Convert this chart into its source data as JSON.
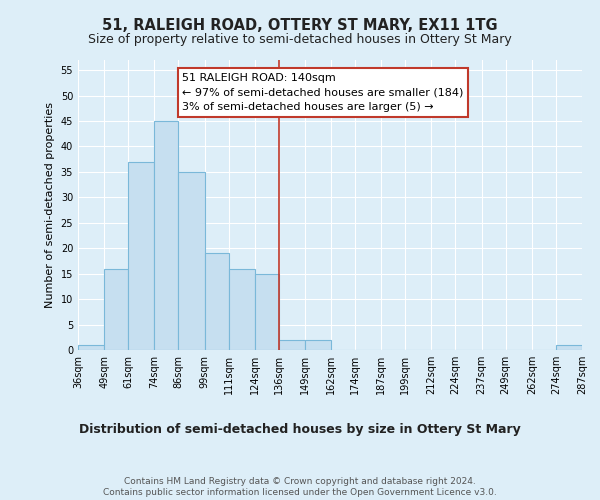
{
  "title": "51, RALEIGH ROAD, OTTERY ST MARY, EX11 1TG",
  "subtitle": "Size of property relative to semi-detached houses in Ottery St Mary",
  "xlabel": "Distribution of semi-detached houses by size in Ottery St Mary",
  "ylabel": "Number of semi-detached properties",
  "bar_edges": [
    36,
    49,
    61,
    74,
    86,
    99,
    111,
    124,
    136,
    149,
    162,
    174,
    187,
    199,
    212,
    224,
    237,
    249,
    262,
    274,
    287
  ],
  "bar_heights": [
    1,
    16,
    37,
    45,
    35,
    19,
    16,
    15,
    2,
    2,
    0,
    0,
    0,
    0,
    0,
    0,
    0,
    0,
    0,
    1
  ],
  "tick_labels": [
    "36sqm",
    "49sqm",
    "61sqm",
    "74sqm",
    "86sqm",
    "99sqm",
    "111sqm",
    "124sqm",
    "136sqm",
    "149sqm",
    "162sqm",
    "174sqm",
    "187sqm",
    "199sqm",
    "212sqm",
    "224sqm",
    "237sqm",
    "249sqm",
    "262sqm",
    "274sqm",
    "287sqm"
  ],
  "bar_color": "#c6dff0",
  "bar_edge_color": "#7ab8d9",
  "property_line_x": 136,
  "property_line_color": "#c0392b",
  "ylim": [
    0,
    57
  ],
  "yticks": [
    0,
    5,
    10,
    15,
    20,
    25,
    30,
    35,
    40,
    45,
    50,
    55
  ],
  "annotation_box_text": "51 RALEIGH ROAD: 140sqm\n← 97% of semi-detached houses are smaller (184)\n3% of semi-detached houses are larger (5) →",
  "annotation_box_color": "#ffffff",
  "annotation_box_edge_color": "#c0392b",
  "background_color": "#ddeef8",
  "grid_color": "#ffffff",
  "footer_text": "Contains HM Land Registry data © Crown copyright and database right 2024.\nContains public sector information licensed under the Open Government Licence v3.0.",
  "title_fontsize": 10.5,
  "subtitle_fontsize": 9,
  "xlabel_fontsize": 9,
  "ylabel_fontsize": 8,
  "annotation_fontsize": 8,
  "footer_fontsize": 6.5,
  "tick_fontsize": 7
}
